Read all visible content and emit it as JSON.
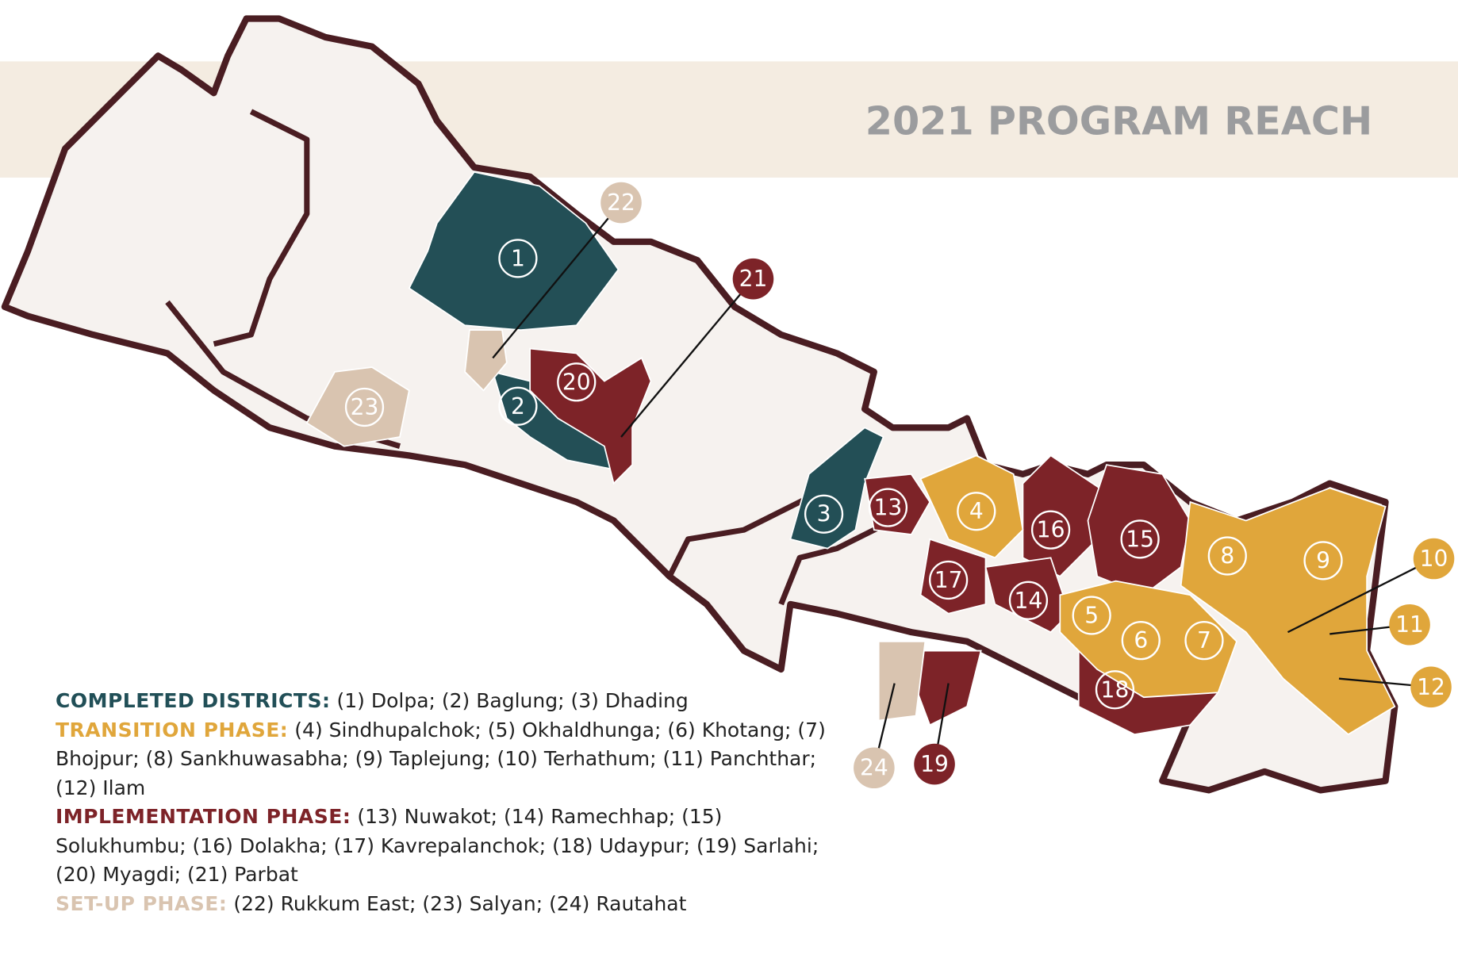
{
  "title": "2021 PROGRAM REACH",
  "legend": [
    {
      "label": "COMPLETED DISTRICTS:",
      "text": "(1) Dolpa; (2) Baglung; (3) Dhading"
    },
    {
      "label": "TRANSITION PHASE:",
      "text": "(4) Sindhupalchok; (5) Okhaldhunga; (6) Khotang; (7) Bhojpur; (8) Sankhuwasabha; (9) Taplejung; (10) Terhathum; (11) Panchthar; (12) Ilam"
    },
    {
      "label": "IMPLEMENTATION PHASE:",
      "text": "(13) Nuwakot; (14) Ramechhap; (15) Solukhumbu; (16) Dolakha; (17) Kavrepalanchok; (18) Udaypur; (19) Sarlahi; (20) Myagdi; (21) Parbat"
    },
    {
      "label": "SET-UP PHASE:",
      "text": "(22) Rukkum East; (23) Salyan; (24) Rautahat"
    }
  ],
  "markers": [
    "1",
    "2",
    "3",
    "4",
    "5",
    "6",
    "7",
    "8",
    "9",
    "10",
    "11",
    "12",
    "13",
    "14",
    "15",
    "16",
    "17",
    "18",
    "19",
    "20",
    "21",
    "22",
    "23",
    "24"
  ]
}
